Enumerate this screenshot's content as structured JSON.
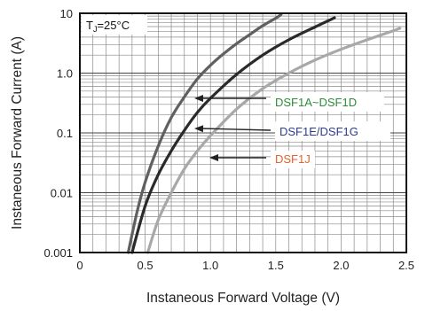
{
  "chart_data": {
    "type": "line",
    "title": "",
    "xlabel": "Instaneous Forward Voltage (V)",
    "ylabel": "Instaneous Forward Current (A)",
    "xlim": [
      0,
      2.5
    ],
    "ylim": [
      0.001,
      10
    ],
    "yscale": "log",
    "x_ticks": [
      "0",
      "0.5",
      "1.0",
      "1.5",
      "2.0",
      "2.5"
    ],
    "y_ticks": [
      "0.001",
      "0.01",
      "0.1",
      "1.0",
      "10"
    ],
    "grid": true,
    "annotation": {
      "prefix": "T",
      "sub": "J",
      "suffix": "=25°C"
    },
    "series": [
      {
        "name": "DSF1A~DSF1D",
        "color": "#606060",
        "label_color": "#2e8b3a",
        "points": [
          [
            0.37,
            0.001
          ],
          [
            0.44,
            0.005
          ],
          [
            0.5,
            0.015
          ],
          [
            0.6,
            0.06
          ],
          [
            0.7,
            0.18
          ],
          [
            0.8,
            0.4
          ],
          [
            0.9,
            0.8
          ],
          [
            1.0,
            1.35
          ],
          [
            1.1,
            2.1
          ],
          [
            1.2,
            3.1
          ],
          [
            1.3,
            4.4
          ],
          [
            1.4,
            6.2
          ],
          [
            1.5,
            8.3
          ],
          [
            1.54,
            9.5
          ]
        ]
      },
      {
        "name": "DSF1E/DSF1G",
        "color": "#2a2a2a",
        "label_color": "#2b3a8f",
        "points": [
          [
            0.4,
            0.001
          ],
          [
            0.5,
            0.006
          ],
          [
            0.6,
            0.02
          ],
          [
            0.7,
            0.05
          ],
          [
            0.8,
            0.11
          ],
          [
            0.9,
            0.22
          ],
          [
            1.0,
            0.38
          ],
          [
            1.2,
            0.95
          ],
          [
            1.4,
            2.0
          ],
          [
            1.6,
            3.6
          ],
          [
            1.8,
            5.9
          ],
          [
            1.95,
            8.4
          ]
        ]
      },
      {
        "name": "DSF1J",
        "color": "#a8a8a8",
        "label_color": "#e8612a",
        "points": [
          [
            0.52,
            0.001
          ],
          [
            0.6,
            0.0035
          ],
          [
            0.7,
            0.01
          ],
          [
            0.8,
            0.025
          ],
          [
            0.9,
            0.05
          ],
          [
            1.0,
            0.09
          ],
          [
            1.2,
            0.25
          ],
          [
            1.4,
            0.55
          ],
          [
            1.6,
            1.0
          ],
          [
            1.8,
            1.65
          ],
          [
            2.0,
            2.5
          ],
          [
            2.2,
            3.6
          ],
          [
            2.4,
            5.1
          ],
          [
            2.45,
            5.6
          ]
        ]
      }
    ]
  }
}
